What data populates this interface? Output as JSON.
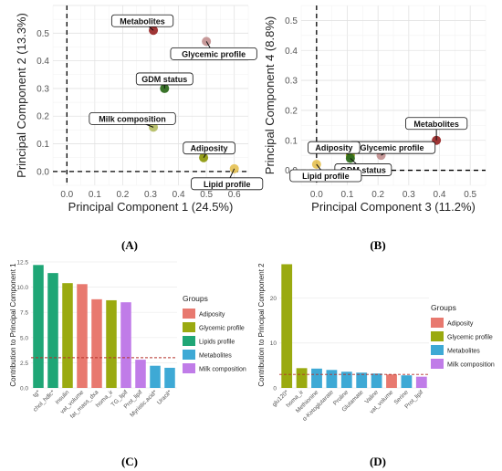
{
  "panel_letters": [
    "(A)",
    "(B)",
    "(C)",
    "(D)"
  ],
  "colors": {
    "Adiposity": "#e8796f",
    "Glycemic profile": "#9aaa10",
    "Lipids profile": "#1fa676",
    "Metabolites": "#3ea9d5",
    "Milk composition": "#c07ce8",
    "Lipid profile": "#e6c35a",
    "GDM status": "#2e6b1e",
    "Metabolites_dot": "#9a2a2a",
    "Glycemic_dot": "#c49494",
    "Milk_dot": "#b6bf67",
    "Adiposity_dot": "#8f9a10",
    "Lipid_dot": "#e6c35a"
  },
  "chart_data": [
    {
      "type": "scatter",
      "panel": "A",
      "xlabel": "Principal Component 1 (24.5%)",
      "ylabel": "Principal Component 2 (13.3%)",
      "xlim": [
        -0.05,
        0.65
      ],
      "ylim": [
        -0.05,
        0.6
      ],
      "xticks": [
        "0.0",
        "0.1",
        "0.2",
        "0.3",
        "0.4",
        "0.5",
        "0.6"
      ],
      "yticks": [
        "0.0",
        "0.1",
        "0.2",
        "0.3",
        "0.4",
        "0.5"
      ],
      "grid": true,
      "points": [
        {
          "label": "Metabolites",
          "x": 0.31,
          "y": 0.51,
          "color": "#9a2a2a"
        },
        {
          "label": "Glycemic profile",
          "x": 0.5,
          "y": 0.47,
          "color": "#c49494"
        },
        {
          "label": "GDM status",
          "x": 0.35,
          "y": 0.3,
          "color": "#2e6b1e"
        },
        {
          "label": "Milk composition",
          "x": 0.31,
          "y": 0.16,
          "color": "#b6bf67"
        },
        {
          "label": "Adiposity",
          "x": 0.49,
          "y": 0.05,
          "color": "#8f9a10"
        },
        {
          "label": "Lipid profile",
          "x": 0.6,
          "y": 0.01,
          "color": "#e6c35a"
        }
      ]
    },
    {
      "type": "scatter",
      "panel": "B",
      "xlabel": "Principal Component 3 (11.2%)",
      "ylabel": "Principal Component 4 (8.8%)",
      "xlim": [
        -0.05,
        0.55
      ],
      "ylim": [
        -0.05,
        0.55
      ],
      "xticks": [
        "0.0",
        "0.1",
        "0.2",
        "0.3",
        "0.4",
        "0.5"
      ],
      "yticks": [
        "0.0",
        "0.1",
        "0.2",
        "0.3",
        "0.4",
        "0.5"
      ],
      "grid": true,
      "points": [
        {
          "label": "Metabolites",
          "x": 0.39,
          "y": 0.1,
          "color": "#9a2a2a"
        },
        {
          "label": "Glycemic profile",
          "x": 0.21,
          "y": 0.05,
          "color": "#c49494"
        },
        {
          "label": "Adiposity",
          "x": 0.11,
          "y": 0.05,
          "color": "#8f9a10"
        },
        {
          "label": "GDM status",
          "x": 0.11,
          "y": 0.04,
          "color": "#2e6b1e"
        },
        {
          "label": "Lipid profile",
          "x": 0.0,
          "y": 0.02,
          "color": "#e6c35a"
        }
      ]
    },
    {
      "type": "bar",
      "panel": "C",
      "ylabel": "Contribution to Principal Component 1",
      "ylim": [
        0,
        12.5
      ],
      "yticks": [
        "0.0",
        "2.5",
        "5.0",
        "7.5",
        "10.0",
        "12.5"
      ],
      "reference_line": 3.0,
      "categories": [
        "tg*",
        "chol_hdlc*",
        "insulin",
        "vat_volume",
        "fat_mass_dxa",
        "homa_ir",
        "TG_lipif",
        "Prot_lipif",
        "Myristic.acid*",
        "Uracil*"
      ],
      "values": [
        12.2,
        11.4,
        10.4,
        10.3,
        8.8,
        8.7,
        8.5,
        2.8,
        2.2,
        2.0
      ],
      "groups": [
        "Lipids profile",
        "Lipids profile",
        "Glycemic profile",
        "Adiposity",
        "Adiposity",
        "Glycemic profile",
        "Milk composition",
        "Milk composition",
        "Metabolites",
        "Metabolites"
      ],
      "legend": {
        "title": "Groups",
        "items": [
          "Adiposity",
          "Glycemic profile",
          "Lipids profile",
          "Metabolites",
          "Milk composition"
        ],
        "placement": "right"
      }
    },
    {
      "type": "bar",
      "panel": "D",
      "ylabel": "Contribution to Principal Component 2",
      "ylim": [
        0,
        28
      ],
      "yticks": [
        "0",
        "10",
        "20"
      ],
      "reference_line": 3.0,
      "categories": [
        "glu120*",
        "homa_ir",
        "Methionine",
        "α-Ketoglutarate",
        "Proline",
        "Glutamate",
        "Valine",
        "vat_volume",
        "Serine",
        "Prot_lipif"
      ],
      "values": [
        27.5,
        4.4,
        4.3,
        4.0,
        3.6,
        3.4,
        3.2,
        3.0,
        2.8,
        2.5
      ],
      "groups": [
        "Glycemic profile",
        "Glycemic profile",
        "Metabolites",
        "Metabolites",
        "Metabolites",
        "Metabolites",
        "Metabolites",
        "Adiposity",
        "Metabolites",
        "Milk composition"
      ],
      "legend": {
        "title": "Groups",
        "items": [
          "Adiposity",
          "Glycemic profile",
          "Metabolites",
          "Milk composition"
        ],
        "placement": "right"
      }
    }
  ]
}
